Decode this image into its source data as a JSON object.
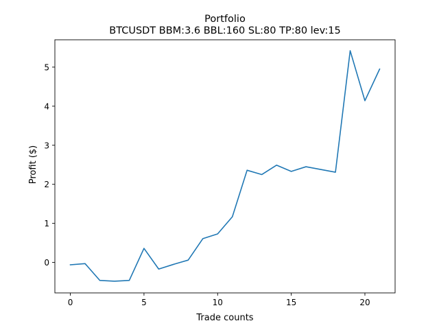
{
  "chart_data": {
    "type": "line",
    "title": "Portfolio",
    "subtitle": "BTCUSDT BBM:3.6 BBL:160 SL:80 TP:80 lev:15",
    "xlabel": "Trade counts",
    "ylabel": "Profit ($)",
    "xlim": [
      -1.05,
      22.05
    ],
    "ylim": [
      -0.78,
      5.7
    ],
    "xticks": [
      0,
      5,
      10,
      15,
      20
    ],
    "yticks": [
      0,
      1,
      2,
      3,
      4,
      5
    ],
    "grid": false,
    "series": [
      {
        "color": "#1f77b4",
        "x": [
          0,
          1,
          2,
          3,
          4,
          5,
          6,
          7,
          8,
          9,
          10,
          11,
          12,
          13,
          14,
          15,
          16,
          17,
          18,
          19,
          20,
          21
        ],
        "y": [
          -0.06,
          -0.03,
          -0.46,
          -0.48,
          -0.46,
          0.36,
          -0.17,
          -0.05,
          0.06,
          0.61,
          0.73,
          1.17,
          2.36,
          2.25,
          2.49,
          2.33,
          2.45,
          2.38,
          2.31,
          5.42,
          4.14,
          4.95
        ]
      }
    ]
  }
}
